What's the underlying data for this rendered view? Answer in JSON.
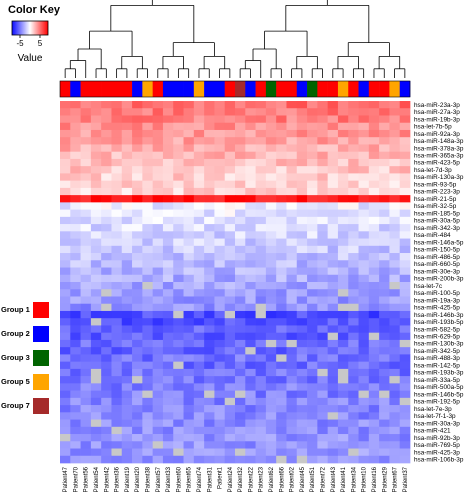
{
  "chart_data": {
    "type": "heatmap",
    "color_key": {
      "title": "Color Key",
      "label": "Value",
      "ticks": [
        "-5",
        "5"
      ],
      "range": [
        -8,
        8
      ],
      "colors": {
        "low": "#0b0bff",
        "mid": "#ffffff",
        "high": "#ff0000"
      }
    },
    "rows": [
      "hsa-miR-23a-3p",
      "hsa-miR-27a-3p",
      "hsa-miR-19b-3p",
      "hsa-let-7b-5p",
      "hsa-miR-92a-3p",
      "hsa-miR-148a-3p",
      "hsa-miR-378a-3p",
      "hsa-miR-365a-3p",
      "hsa-miR-423-5p",
      "hsa-let-7d-3p",
      "hsa-miR-130a-3p",
      "hsa-miR-93-5p",
      "hsa-miR-223-3p",
      "hsa-miR-21-5p",
      "hsa-miR-32-5p",
      "hsa-miR-185-5p",
      "hsa-miR-30a-5p",
      "hsa-miR-342-3p",
      "hsa-miR-484",
      "hsa-miR-146a-5p",
      "hsa-miR-150-5p",
      "hsa-miR-486-5p",
      "hsa-miR-660-5p",
      "hsa-miR-30e-3p",
      "hsa-miR-200b-3p",
      "hsa-let-7c",
      "hsa-miR-100-5p",
      "hsa-miR-19a-3p",
      "hsa-miR-425-5p",
      "hsa-miR-146b-3p",
      "hsa-miR-193b-5p",
      "hsa-miR-582-5p",
      "hsa-miR-629-5p",
      "hsa-miR-130b-3p",
      "hsa-miR-342-5p",
      "hsa-miR-488-3p",
      "hsa-miR-142-5p",
      "hsa-miR-193b-3p",
      "hsa-miR-33a-5p",
      "hsa-miR-500a-5p",
      "hsa-miR-146b-5p",
      "hsa-miR-192-5p",
      "hsa-let-7e-3p",
      "hsa-let-7f-1-3p",
      "hsa-miR-30a-3p",
      "hsa-miR-421",
      "hsa-miR-92b-3p",
      "hsa-miR-769-5p",
      "hsa-miR-425-3p",
      "hsa-miR-106b-3p"
    ],
    "row_base": [
      4.5,
      4.2,
      4.0,
      3.6,
      3.3,
      2.9,
      2.6,
      2.3,
      2.0,
      1.8,
      1.6,
      1.5,
      1.4,
      7.5,
      -0.6,
      -0.8,
      -1.0,
      -1.2,
      -1.4,
      -1.6,
      -1.8,
      -2.0,
      -2.3,
      -2.5,
      -2.7,
      -2.9,
      -3.1,
      -3.3,
      -3.6,
      -5.8,
      -5.6,
      -5.0,
      -5.2,
      -4.8,
      -5.0,
      -4.6,
      -4.8,
      -4.5,
      -4.4,
      -4.2,
      -4.2,
      -4.0,
      -4.0,
      -3.9,
      -3.8,
      -3.7,
      -3.6,
      -3.5,
      -3.5,
      -3.4
    ],
    "columns": [
      "Patient47",
      "Patient70",
      "Patient56",
      "Patient54",
      "Patient42",
      "Patient36",
      "Patient19",
      "Patient20",
      "Patient38",
      "Patient57",
      "Patient33",
      "Patient60",
      "Patient65",
      "Patient74",
      "Patient31",
      "Patient1",
      "Patient24",
      "Patient32",
      "Patient22",
      "Patient23",
      "Patient62",
      "Patient66",
      "Patient02",
      "Patient45",
      "Patient51",
      "Patient72",
      "Patient43",
      "Patient41",
      "Patient34",
      "Patient10",
      "Patient16",
      "Patient29",
      "Patient67",
      "Patient37"
    ],
    "column_groups": [
      "Group 1",
      "Group 2",
      "Group 1",
      "Group 1",
      "Group 1",
      "Group 1",
      "Group 1",
      "Group 2",
      "Group 5",
      "Group 1",
      "Group 2",
      "Group 2",
      "Group 2",
      "Group 5",
      "Group 2",
      "Group 2",
      "Group 1",
      "Group 7",
      "Group 2",
      "Group 1",
      "Group 3",
      "Group 1",
      "Group 1",
      "Group 2",
      "Group 3",
      "Group 1",
      "Group 1",
      "Group 5",
      "Group 1",
      "Group 2",
      "Group 1",
      "Group 1",
      "Group 5",
      "Group 2"
    ],
    "legend": [
      {
        "name": "Group 1",
        "color": "#ff0000"
      },
      {
        "name": "Group 2",
        "color": "#0000ff"
      },
      {
        "name": "Group 3",
        "color": "#006400"
      },
      {
        "name": "Group 5",
        "color": "#ffa500"
      },
      {
        "name": "Group 7",
        "color": "#a52a2a"
      }
    ],
    "legend_position": "left"
  }
}
